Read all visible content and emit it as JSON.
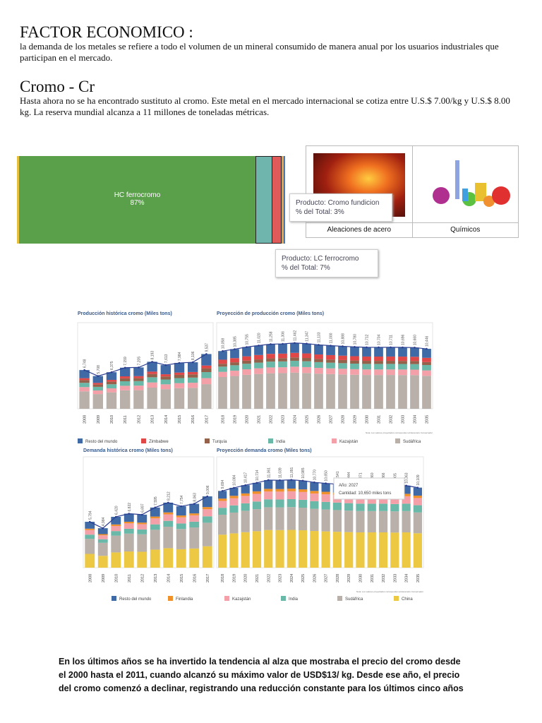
{
  "factor": {
    "title": "FACTOR ECONOMICO :",
    "text": "la demanda de los metales se refiere a todo el volumen de un mineral consumido de manera anual por los usuarios industriales que participan en el mercado."
  },
  "cromo": {
    "title": "Cromo - Cr",
    "text": "Hasta ahora no se ha encontrado sustituto al cromo. Este metal en el mercado internacional se cotiza entre U.S.$ 7.00/kg y U.S.$ 8.00 kg. La reserva mundial alcanza a 11 millones de toneladas métricas."
  },
  "treemap": {
    "main_label": "HC ferrocromo",
    "main_pct": "87%",
    "tooltip1": {
      "line1": "Producto: Cromo fundicion",
      "line2": "% del Total: 3%"
    },
    "tooltip2": {
      "line1": "Producto: LC ferrocromo",
      "line2": "% del Total: 7%"
    },
    "colors": {
      "hc": "#5aa04a",
      "teal": "#6fb5ad",
      "red": "#e05a5a",
      "orange": "#e8a040",
      "blue": "#4a78b0"
    }
  },
  "uses": [
    {
      "label": "Aleaciones de acero",
      "icon": "molten-steel-image"
    },
    {
      "label": "Químicos",
      "icon": "lab-flasks-image"
    }
  ],
  "chart_data": [
    {
      "type": "bar",
      "stacked": true,
      "title": "Producción histórica cromo (Miles tons)",
      "categories": [
        "2008",
        "2009",
        "2010",
        "2011",
        "2012",
        "2013",
        "2014",
        "2015",
        "2016",
        "2017"
      ],
      "totals": [
        6748,
        5708,
        6375,
        7159,
        7205,
        8193,
        7613,
        7984,
        8106,
        9537
      ],
      "total_labels": [
        "6,748",
        "5,708",
        "6,375",
        "7,159",
        "7,205",
        "8,193",
        "7,613",
        "7,984",
        "8,106",
        "9,537"
      ],
      "ylim": [
        0,
        15000
      ],
      "line": true
    },
    {
      "type": "bar",
      "stacked": true,
      "title": "Proyección de producción cromo (Miles tons)",
      "categories": [
        "2018",
        "2019",
        "2020",
        "2021",
        "2022",
        "2023",
        "2024",
        "2025",
        "2026",
        "2027",
        "2028",
        "2029",
        "2030",
        "2031",
        "2032",
        "2033",
        "2034",
        "2035"
      ],
      "totals": [
        10058,
        10385,
        10755,
        11020,
        11258,
        11306,
        11462,
        11347,
        11133,
        11000,
        10888,
        10780,
        10712,
        10704,
        10711,
        10696,
        10660,
        10446
      ],
      "total_labels": [
        "10,058",
        "10,385",
        "10,755",
        "11,020",
        "11,258",
        "11,306",
        "11,462",
        "11,347",
        "11,133",
        "11,000",
        "10,888",
        "10,780",
        "10,712",
        "10,704",
        "10,711",
        "10,696",
        "10,660",
        "10,446"
      ],
      "ylim": [
        0,
        15000
      ],
      "line": true,
      "note": "Nota: Los valores proyectados corresponden al Escenario Conservador"
    },
    {
      "type": "bar",
      "stacked": true,
      "title": "Demanda histórica cromo (Miles tons)",
      "categories": [
        "2008",
        "2009",
        "2010",
        "2011",
        "2012",
        "2013",
        "2014",
        "2015",
        "2016",
        "2017"
      ],
      "totals": [
        5794,
        4984,
        6420,
        6822,
        6697,
        7595,
        8212,
        7754,
        8063,
        9006
      ],
      "total_labels": [
        "5,794",
        "4,984",
        "6,420",
        "6,822",
        "6,697",
        "7,595",
        "8,212",
        "7,754",
        "8,063",
        "9,006"
      ],
      "ylim": [
        0,
        14000
      ],
      "line": true
    },
    {
      "type": "bar",
      "stacked": true,
      "title": "Proyección demanda cromo (Miles tons)",
      "categories": [
        "2018",
        "2019",
        "2020",
        "2021",
        "2022",
        "2023",
        "2024",
        "2025",
        "2026",
        "2027",
        "2028",
        "2029",
        "2030",
        "2031",
        "2032",
        "2033",
        "2034",
        "2035"
      ],
      "totals": [
        9694,
        10084,
        10417,
        10714,
        11061,
        11039,
        11091,
        10985,
        10770,
        10650,
        10541,
        10444,
        10371,
        10360,
        10366,
        10305,
        10363,
        10109
      ],
      "total_labels": [
        "9,694",
        "10,084",
        "10,417",
        "10,714",
        "11,061",
        "11,039",
        "11,091",
        "10,985",
        "10,770",
        "10,650",
        "10,541",
        "10,444",
        "10,371",
        "10,360",
        "10,366",
        "10,305",
        "10,363",
        "10,109"
      ],
      "ylim": [
        0,
        14000
      ],
      "line": true,
      "note": "Nota: Los valores proyectados corresponden al Escenario Conservador",
      "tooltip": {
        "line1": "Año: 2027",
        "line2": "Cantidad: 10,650 miles tons"
      }
    }
  ],
  "production_series": [
    {
      "name": "Sudáfrica",
      "color": "#b9b0aa",
      "share_hist": 45,
      "share_proj": 55
    },
    {
      "name": "Kazajstán",
      "color": "#f4a0a8",
      "share_hist": 11,
      "share_proj": 9
    },
    {
      "name": "India",
      "color": "#6ab8a8",
      "share_hist": 11,
      "share_proj": 9
    },
    {
      "name": "Turquía",
      "color": "#94624a",
      "share_hist": 7,
      "share_proj": 5
    },
    {
      "name": "Zimbabwe",
      "color": "#e04848",
      "share_hist": 5,
      "share_proj": 7
    },
    {
      "name": "Resto del mundo",
      "color": "#3f6aa6",
      "share_hist": 21,
      "share_proj": 15
    }
  ],
  "production_legend": [
    "Resto del mundo",
    "Zimbabwe",
    "Turquía",
    "India",
    "Kazajstán",
    "Sudáfrica"
  ],
  "demand_series": [
    {
      "name": "China",
      "color": "#ecc843",
      "share_hist": 30,
      "share_proj": 43
    },
    {
      "name": "Sudáfrica",
      "color": "#b9b0aa",
      "share_hist": 33,
      "share_proj": 26
    },
    {
      "name": "India",
      "color": "#6ab8a8",
      "share_hist": 9,
      "share_proj": 9
    },
    {
      "name": "Kazajstán",
      "color": "#f4a0a8",
      "share_hist": 10,
      "share_proj": 9
    },
    {
      "name": "Finlandia",
      "color": "#f0902a",
      "share_hist": 3,
      "share_proj": 3
    },
    {
      "name": "Resto del mundo",
      "color": "#3f6aa6",
      "share_hist": 15,
      "share_proj": 10
    }
  ],
  "demand_legend": [
    "Resto del mundo",
    "Finlandia",
    "Kazajstán",
    "India",
    "Sudáfrica",
    "China"
  ],
  "conclusion": "En los últimos años se ha invertido la tendencia al alza que mostraba el precio del cromo desde el 2000 hasta el 2011, cuando alcanzó su máximo valor de USD$13/ kg. Desde ese año, el precio del cromo comenzó a declinar, registrando una reducción constante para los últimos cinco años"
}
